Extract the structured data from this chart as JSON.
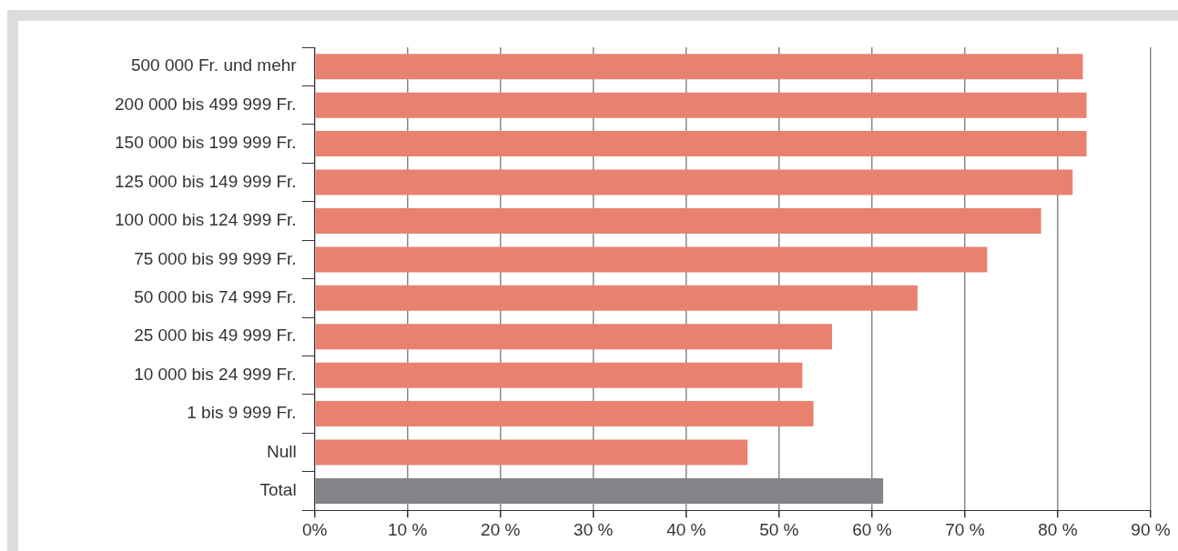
{
  "chart_data": {
    "type": "bar",
    "orientation": "horizontal",
    "categories": [
      "500 000 Fr. und mehr",
      "200 000 bis 499 999 Fr.",
      "150 000 bis 199 999 Fr.",
      "125 000 bis 149 999 Fr.",
      "100 000 bis 124 999 Fr.",
      "75 000 bis 99 999 Fr.",
      "50 000 bis 74 999 Fr.",
      "25 000 bis 49 999 Fr.",
      "10 000 bis 24 999 Fr.",
      "1 bis 9 999 Fr.",
      "Null",
      "Total"
    ],
    "values": [
      82.7,
      83.1,
      83.1,
      81.6,
      78.2,
      72.4,
      64.9,
      55.7,
      52.5,
      53.7,
      46.6,
      61.2
    ],
    "colors": [
      "#e8826f",
      "#e8826f",
      "#e8826f",
      "#e8826f",
      "#e8826f",
      "#e8826f",
      "#e8826f",
      "#e8826f",
      "#e8826f",
      "#e8826f",
      "#e8826f",
      "#838487"
    ],
    "xlim": [
      0,
      90
    ],
    "xticks": [
      {
        "value": 0,
        "label": "0%"
      },
      {
        "value": 10,
        "label": "10 %"
      },
      {
        "value": 20,
        "label": "20 %"
      },
      {
        "value": 30,
        "label": "30 %"
      },
      {
        "value": 40,
        "label": "40 %"
      },
      {
        "value": 50,
        "label": "50 %"
      },
      {
        "value": 60,
        "label": "60 %"
      },
      {
        "value": 70,
        "label": "70 %"
      },
      {
        "value": 80,
        "label": "80 %"
      },
      {
        "value": 90,
        "label": "90 %"
      }
    ],
    "grid": "x",
    "legend": false
  }
}
